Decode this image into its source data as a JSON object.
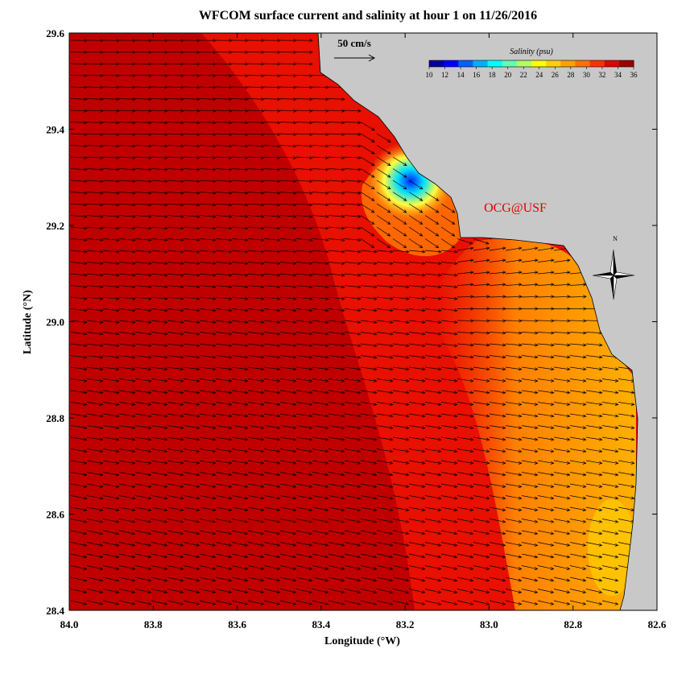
{
  "chart_data": {
    "type": "map",
    "title": "WFCOM surface current and salinity at hour 1 on 11/26/2016",
    "x_label": "Longitude (°W)",
    "y_label": "Latitude (°N)",
    "xlim": [
      84,
      82.6
    ],
    "xticks": [
      {
        "value": 84,
        "label": "84.0"
      },
      83.8,
      83.6,
      83.4,
      83.2,
      {
        "value": 83,
        "label": "83.0"
      },
      82.8,
      82.6
    ],
    "ylim": [
      28.4,
      29.6
    ],
    "yticks": [
      28.4,
      28.6,
      28.8,
      {
        "value": 29,
        "label": "29.0"
      },
      29.2,
      29.4,
      29.6
    ],
    "reference_vector": "50 cm/s",
    "colorbar": {
      "title": "Salinity (psu)",
      "lim": [
        10,
        36
      ],
      "ticks": [
        10,
        12,
        14,
        16,
        18,
        20,
        22,
        24,
        26,
        28,
        30,
        32,
        34,
        36
      ],
      "colors": [
        "#00009c",
        "#0000ff",
        "#0060ff",
        "#00b0ff",
        "#00ffff",
        "#60ffb0",
        "#b0ff60",
        "#ffff00",
        "#ffd000",
        "#ffa000",
        "#ff7000",
        "#ff3000",
        "#e00000",
        "#9c0000"
      ]
    },
    "watermark": "OCG@USF",
    "compass": "N"
  }
}
